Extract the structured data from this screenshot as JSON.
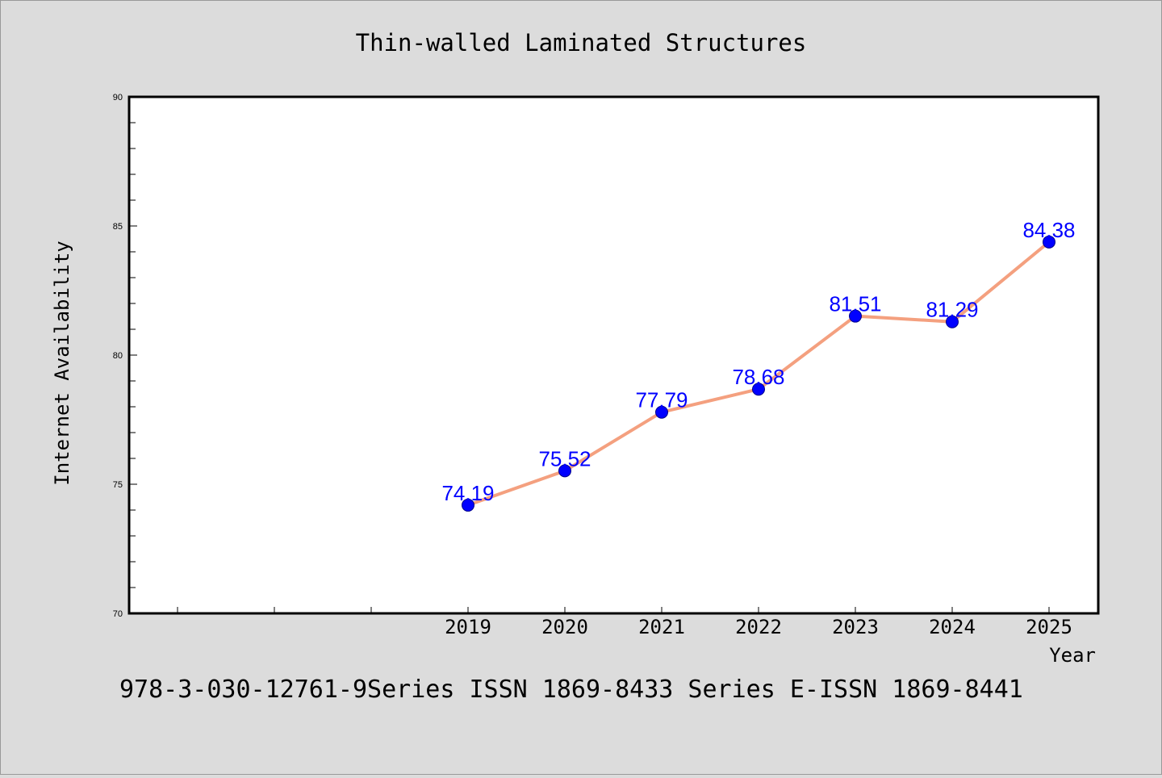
{
  "chart_data": {
    "type": "line",
    "title": "Thin-walled Laminated Structures",
    "xlabel": "Year",
    "ylabel": "Internet Availability",
    "caption": "978-3-030-12761-9Series ISSN 1869-8433 Series E-ISSN 1869-8441",
    "categories": [
      "2019",
      "2020",
      "2021",
      "2022",
      "2023",
      "2024",
      "2025"
    ],
    "series": [
      {
        "values": [
          74.19,
          75.52,
          77.79,
          78.68,
          81.51,
          81.29,
          84.38
        ],
        "labels": [
          "74.19",
          "75.52",
          "77.79",
          "78.68",
          "81.51",
          "81.29",
          "84.38"
        ]
      }
    ],
    "ylim": [
      70,
      90
    ],
    "yticks": [
      "70",
      "75",
      "80",
      "85",
      "90"
    ],
    "grid": false,
    "legend": "none",
    "colors": {
      "background": "#dcdcdc",
      "plot_background": "#ffffff",
      "line": "#f4a07f",
      "marker": "#0000ff",
      "data_label": "#0000ff",
      "text": "#000000"
    }
  }
}
